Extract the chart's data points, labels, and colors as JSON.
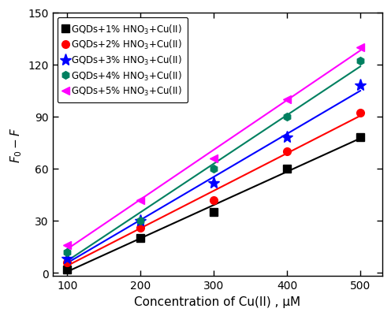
{
  "x": [
    100,
    200,
    300,
    400,
    500
  ],
  "series": [
    {
      "label": "GQDs+1% HNO$_3$+Cu(II)",
      "color": "black",
      "marker": "s",
      "y": [
        2,
        20,
        35,
        60,
        78
      ]
    },
    {
      "label": "GQDs+2% HNO$_3$+Cu(II)",
      "color": "red",
      "marker": "o",
      "y": [
        6,
        26,
        42,
        70,
        92
      ]
    },
    {
      "label": "GQDs+3% HNO$_3$+Cu(II)",
      "color": "blue",
      "marker": "*",
      "y": [
        8,
        30,
        52,
        78,
        108
      ]
    },
    {
      "label": "GQDs+4% HNO$_3$+Cu(II)",
      "color": "#008060",
      "marker": "h",
      "y": [
        12,
        30,
        60,
        90,
        122
      ]
    },
    {
      "label": "GQDs+5% HNO$_3$+Cu(II)",
      "color": "magenta",
      "marker": "<",
      "y": [
        16,
        42,
        66,
        100,
        130
      ]
    }
  ],
  "xlim": [
    80,
    530
  ],
  "ylim": [
    -2,
    150
  ],
  "xticks": [
    100,
    200,
    300,
    400,
    500
  ],
  "yticks": [
    0,
    30,
    60,
    90,
    120,
    150
  ],
  "xlabel": "Concentration of Cu(II) , μM",
  "ylabel": "$F_0-F$",
  "figsize": [
    4.96,
    4.02
  ],
  "dpi": 100
}
